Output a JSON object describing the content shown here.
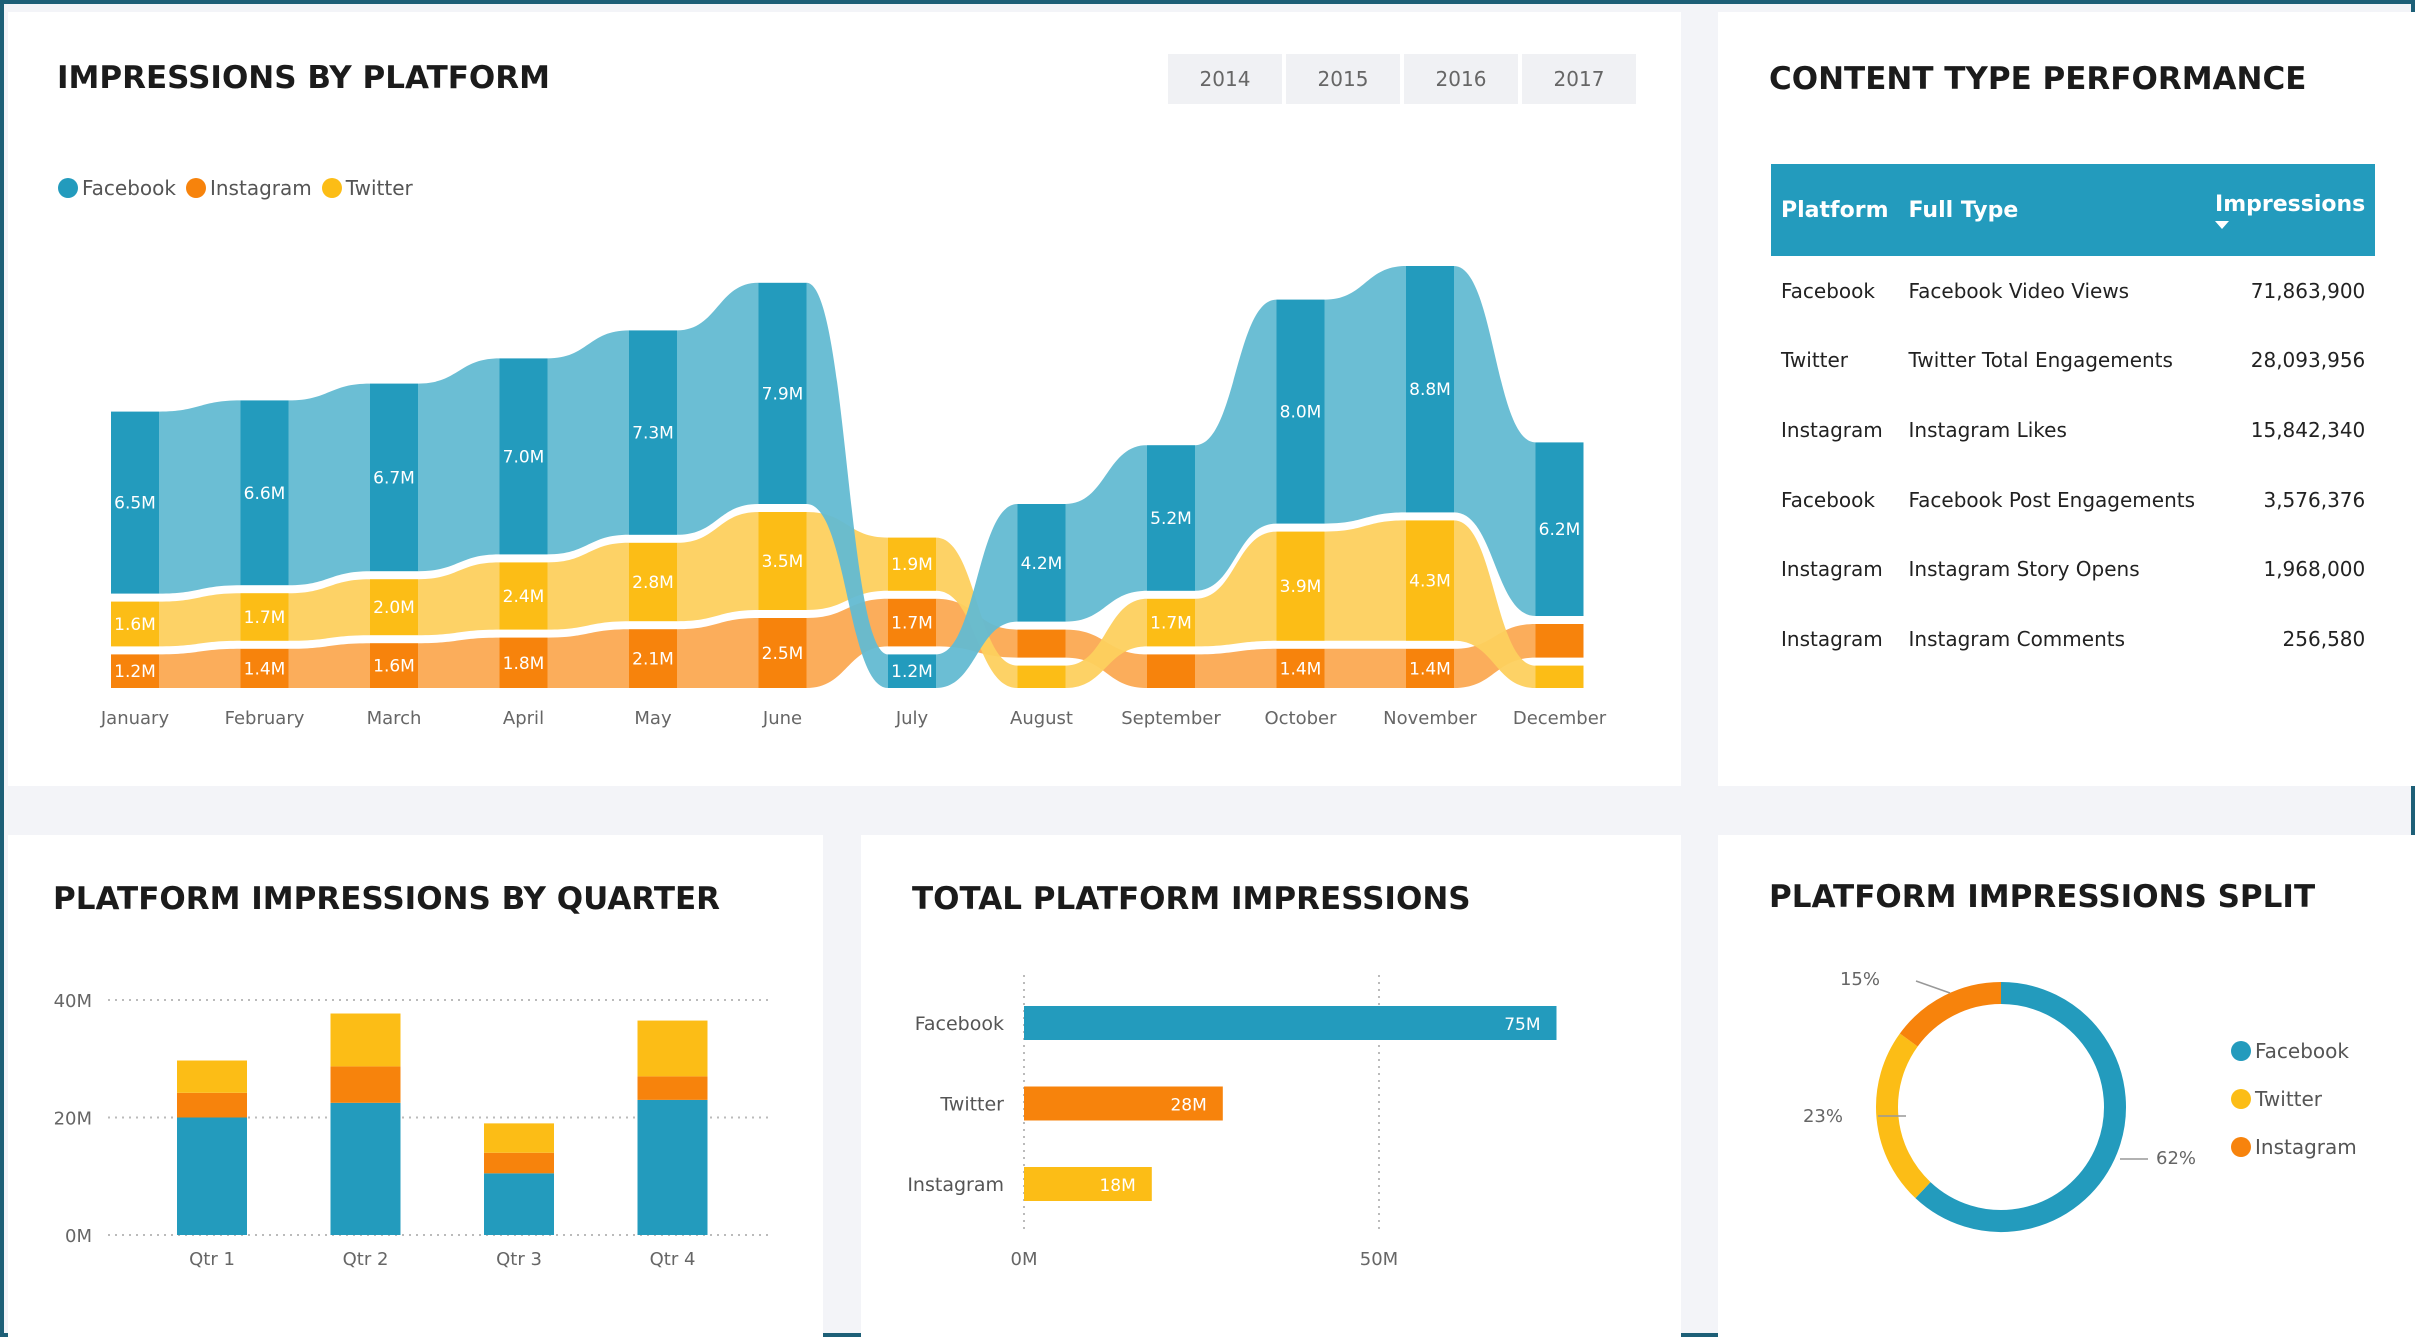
{
  "colors": {
    "facebook": "#239bbd",
    "instagram": "#f7830c",
    "twitter": "#fcbd16",
    "facebook_light": "#63bbd2",
    "instagram_light": "#fba952",
    "twitter_light": "#fdd05e"
  },
  "ribbon": {
    "title": "IMPRESSIONS BY PLATFORM",
    "years": [
      "2014",
      "2015",
      "2016",
      "2017"
    ],
    "legend": [
      "Facebook",
      "Instagram",
      "Twitter"
    ]
  },
  "content_table": {
    "title": "CONTENT TYPE PERFORMANCE",
    "columns": [
      "Platform",
      "Full Type",
      "Impressions"
    ],
    "rows": [
      [
        "Facebook",
        "Facebook Video Views",
        "71,863,900"
      ],
      [
        "Twitter",
        "Twitter Total Engagements",
        "28,093,956"
      ],
      [
        "Instagram",
        "Instagram Likes",
        "15,842,340"
      ],
      [
        "Facebook",
        "Facebook Post Engagements",
        "3,576,376"
      ],
      [
        "Instagram",
        "Instagram Story Opens",
        "1,968,000"
      ],
      [
        "Instagram",
        "Instagram Comments",
        "256,580"
      ]
    ]
  },
  "quarter": {
    "title": "PLATFORM IMPRESSIONS BY QUARTER"
  },
  "total": {
    "title": "TOTAL PLATFORM IMPRESSIONS"
  },
  "split": {
    "title": "PLATFORM IMPRESSIONS SPLIT",
    "legend": [
      "Facebook",
      "Twitter",
      "Instagram"
    ]
  },
  "chart_data": [
    {
      "type": "area",
      "title": "IMPRESSIONS BY PLATFORM",
      "subtype": "ribbon",
      "categories": [
        "January",
        "February",
        "March",
        "April",
        "May",
        "June",
        "July",
        "August",
        "September",
        "October",
        "November",
        "December"
      ],
      "series": [
        {
          "name": "Facebook",
          "values": [
            6.5,
            6.6,
            6.7,
            7.0,
            7.3,
            7.9,
            1.2,
            4.2,
            5.2,
            8.0,
            8.8,
            6.2
          ],
          "labels": [
            "6.5M",
            "6.6M",
            "6.7M",
            "7.0M",
            "7.3M",
            "7.9M",
            "1.2M",
            "4.2M",
            "5.2M",
            "8.0M",
            "8.8M",
            "6.2M"
          ]
        },
        {
          "name": "Twitter",
          "values": [
            1.6,
            1.7,
            2.0,
            2.4,
            2.8,
            3.5,
            1.9,
            0.8,
            1.7,
            3.9,
            4.3,
            0.8
          ],
          "labels": [
            "1.6M",
            "1.7M",
            "2.0M",
            "2.4M",
            "2.8M",
            "3.5M",
            "1.9M",
            "",
            "1.7M",
            "3.9M",
            "4.3M",
            ""
          ]
        },
        {
          "name": "Instagram",
          "values": [
            1.2,
            1.4,
            1.6,
            1.8,
            2.1,
            2.5,
            1.7,
            1.0,
            1.2,
            1.4,
            1.4,
            1.2
          ],
          "labels": [
            "1.2M",
            "1.4M",
            "1.6M",
            "1.8M",
            "2.1M",
            "2.5M",
            "1.7M",
            "",
            "",
            "1.4M",
            "1.4M",
            ""
          ]
        }
      ]
    },
    {
      "type": "bar",
      "title": "PLATFORM IMPRESSIONS BY QUARTER",
      "stacked": true,
      "categories": [
        "Qtr 1",
        "Qtr 2",
        "Qtr 3",
        "Qtr 4"
      ],
      "series": [
        {
          "name": "Facebook",
          "values": [
            20,
            22.5,
            10.5,
            23
          ]
        },
        {
          "name": "Instagram",
          "values": [
            4.2,
            6.2,
            3.5,
            4
          ]
        },
        {
          "name": "Twitter",
          "values": [
            5.5,
            9,
            5,
            9.5
          ]
        }
      ],
      "ylim": [
        0,
        40
      ],
      "yticks": [
        "0M",
        "20M",
        "40M"
      ],
      "ytick_values": [
        0,
        20,
        40
      ],
      "grid": true
    },
    {
      "type": "bar",
      "title": "TOTAL PLATFORM IMPRESSIONS",
      "orientation": "horizontal",
      "categories": [
        "Facebook",
        "Twitter",
        "Instagram"
      ],
      "values": [
        75,
        28,
        18
      ],
      "labels": [
        "75M",
        "28M",
        "18M"
      ],
      "xticks": [
        "0M",
        "50M"
      ],
      "xtick_values": [
        0,
        50
      ],
      "grid": true
    },
    {
      "type": "pie",
      "title": "PLATFORM IMPRESSIONS SPLIT",
      "donut": true,
      "categories": [
        "Facebook",
        "Twitter",
        "Instagram"
      ],
      "values": [
        62,
        23,
        15
      ],
      "labels": [
        "62%",
        "23%",
        "15%"
      ],
      "legend": "right"
    }
  ]
}
